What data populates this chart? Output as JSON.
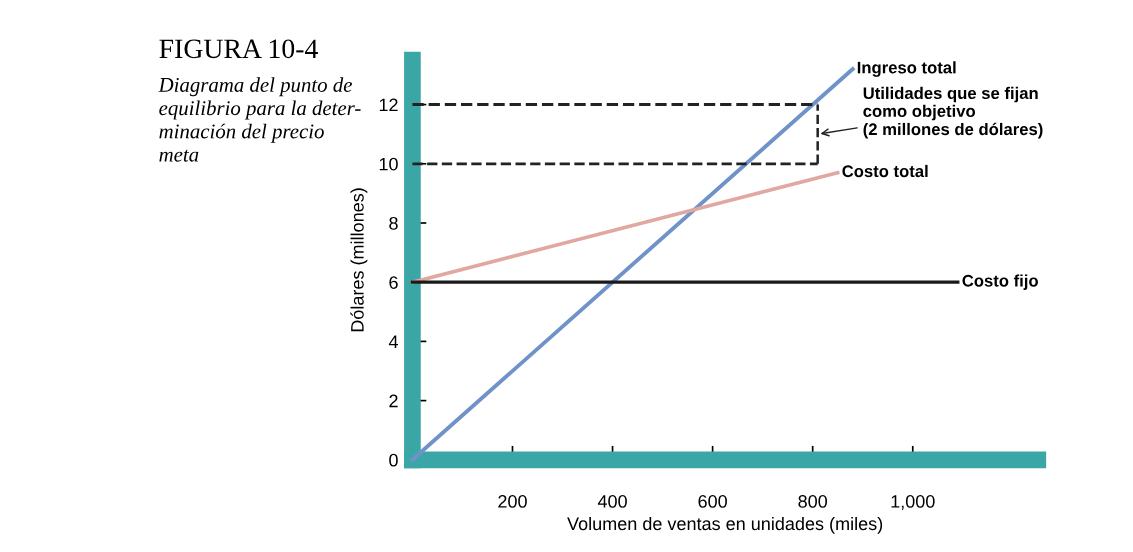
{
  "chart_data": {
    "type": "line",
    "title": "FIGURA 10-4",
    "subtitle": "Diagrama del punto de\nequilibrio para la deter-\nminación del precio\nmeta",
    "xlabel": "Volumen de ventas en unidades (miles)",
    "ylabel": "Dólares (millones)",
    "xlim": [
      0,
      1250
    ],
    "ylim": [
      0,
      13.5
    ],
    "xticks": [
      200,
      400,
      600,
      800,
      {
        "value": 1000,
        "label": "1,000"
      }
    ],
    "yticks": [
      0,
      2,
      4,
      6,
      8,
      10,
      12
    ],
    "grid": false,
    "legend": false,
    "series": [
      {
        "name": "Ingreso total",
        "color": "#6f93c9",
        "x": [
          0,
          880
        ],
        "values": [
          0,
          13.2
        ]
      },
      {
        "name": "Costo total",
        "color": "#e0a8a0",
        "x": [
          0,
          850
        ],
        "values": [
          6,
          9.7
        ]
      },
      {
        "name": "Costo fijo",
        "color": "#1a1a1a",
        "x": [
          0,
          1090
        ],
        "values": [
          6,
          6
        ]
      },
      {
        "color": "#222222",
        "line_style": "dashed",
        "x": [
          0,
          810
        ],
        "values": [
          12,
          12
        ]
      },
      {
        "color": "#222222",
        "line_style": "dashed",
        "x": [
          0,
          810
        ],
        "values": [
          10,
          10
        ]
      },
      {
        "color": "#222222",
        "line_style": "dashed",
        "x": [
          810,
          810
        ],
        "values": [
          10,
          12
        ]
      }
    ],
    "annotations": [
      {
        "text": "Utilidades que se fijan\ncomo objetivo\n(2 millones de dólares)",
        "x": 810,
        "y": 11
      }
    ]
  }
}
